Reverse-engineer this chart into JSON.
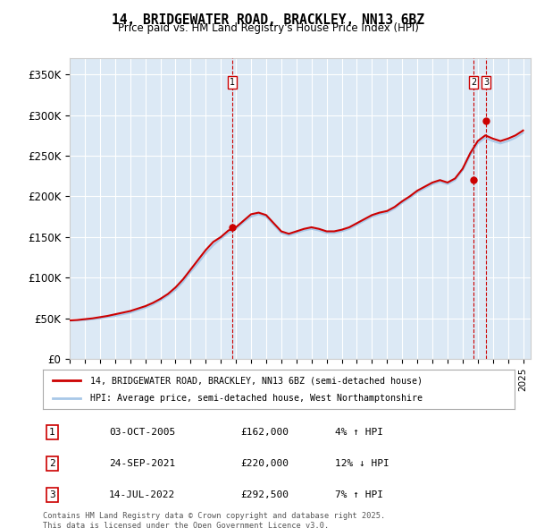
{
  "title": "14, BRIDGEWATER ROAD, BRACKLEY, NN13 6BZ",
  "subtitle": "Price paid vs. HM Land Registry's House Price Index (HPI)",
  "background_color": "#dce9f5",
  "plot_bg_color": "#dce9f5",
  "ylim": [
    0,
    370000
  ],
  "xlim_start": 1995,
  "xlim_end": 2025.5,
  "yticks": [
    0,
    50000,
    100000,
    150000,
    200000,
    250000,
    300000,
    350000
  ],
  "ytick_labels": [
    "£0",
    "£50K",
    "£100K",
    "£150K",
    "£200K",
    "£250K",
    "£300K",
    "£350K"
  ],
  "hpi_color": "#a8c8e8",
  "price_color": "#cc0000",
  "sale_marker_color": "#cc0000",
  "vline_color": "#cc0000",
  "grid_color": "#ffffff",
  "legend_label_price": "14, BRIDGEWATER ROAD, BRACKLEY, NN13 6BZ (semi-detached house)",
  "legend_label_hpi": "HPI: Average price, semi-detached house, West Northamptonshire",
  "transactions": [
    {
      "num": 1,
      "date": "03-OCT-2005",
      "price": 162000,
      "pct": "4%",
      "dir": "↑",
      "year": 2005.75
    },
    {
      "num": 2,
      "date": "24-SEP-2021",
      "price": 220000,
      "pct": "12%",
      "dir": "↓",
      "year": 2021.73
    },
    {
      "num": 3,
      "date": "14-JUL-2022",
      "price": 292500,
      "pct": "7%",
      "dir": "↑",
      "year": 2022.54
    }
  ],
  "footer": "Contains HM Land Registry data © Crown copyright and database right 2025.\nThis data is licensed under the Open Government Licence v3.0.",
  "hpi_years": [
    1995,
    1995.5,
    1996,
    1996.5,
    1997,
    1997.5,
    1998,
    1998.5,
    1999,
    1999.5,
    2000,
    2000.5,
    2001,
    2001.5,
    2002,
    2002.5,
    2003,
    2003.5,
    2004,
    2004.5,
    2005,
    2005.5,
    2006,
    2006.5,
    2007,
    2007.5,
    2008,
    2008.5,
    2009,
    2009.5,
    2010,
    2010.5,
    2011,
    2011.5,
    2012,
    2012.5,
    2013,
    2013.5,
    2014,
    2014.5,
    2015,
    2015.5,
    2016,
    2016.5,
    2017,
    2017.5,
    2018,
    2018.5,
    2019,
    2019.5,
    2020,
    2020.5,
    2021,
    2021.5,
    2022,
    2022.5,
    2023,
    2023.5,
    2024,
    2024.5,
    2025
  ],
  "hpi_values": [
    47000,
    47500,
    48000,
    49000,
    50000,
    51500,
    53000,
    55000,
    57000,
    60000,
    63000,
    67000,
    72000,
    78000,
    85000,
    95000,
    107000,
    118000,
    130000,
    140000,
    148000,
    155000,
    160000,
    168000,
    175000,
    178000,
    175000,
    165000,
    155000,
    152000,
    155000,
    158000,
    160000,
    158000,
    155000,
    155000,
    157000,
    160000,
    165000,
    170000,
    175000,
    178000,
    180000,
    185000,
    192000,
    198000,
    205000,
    210000,
    215000,
    218000,
    215000,
    220000,
    232000,
    250000,
    265000,
    272000,
    268000,
    265000,
    268000,
    272000,
    278000
  ],
  "price_years": [
    1995,
    1995.5,
    1996,
    1996.5,
    1997,
    1997.5,
    1998,
    1998.5,
    1999,
    1999.5,
    2000,
    2000.5,
    2001,
    2001.5,
    2002,
    2002.5,
    2003,
    2003.5,
    2004,
    2004.5,
    2005,
    2005.5,
    2006,
    2006.5,
    2007,
    2007.5,
    2008,
    2008.5,
    2009,
    2009.5,
    2010,
    2010.5,
    2011,
    2011.5,
    2012,
    2012.5,
    2013,
    2013.5,
    2014,
    2014.5,
    2015,
    2015.5,
    2016,
    2016.5,
    2017,
    2017.5,
    2018,
    2018.5,
    2019,
    2019.5,
    2020,
    2020.5,
    2021,
    2021.5,
    2022,
    2022.5,
    2023,
    2023.5,
    2024,
    2024.5,
    2025
  ],
  "price_values": [
    47500,
    48000,
    49000,
    50000,
    51500,
    53000,
    55000,
    57000,
    59000,
    62000,
    65000,
    69000,
    74000,
    80000,
    88000,
    98000,
    110000,
    122000,
    134000,
    144000,
    150000,
    158000,
    162000,
    170000,
    178000,
    180000,
    177000,
    167000,
    157000,
    154000,
    157000,
    160000,
    162000,
    160000,
    157000,
    157000,
    159000,
    162000,
    167000,
    172000,
    177000,
    180000,
    182000,
    187000,
    194000,
    200000,
    207000,
    212000,
    217000,
    220000,
    217000,
    222000,
    234000,
    253000,
    268000,
    275000,
    271000,
    268000,
    271000,
    275000,
    281000
  ]
}
